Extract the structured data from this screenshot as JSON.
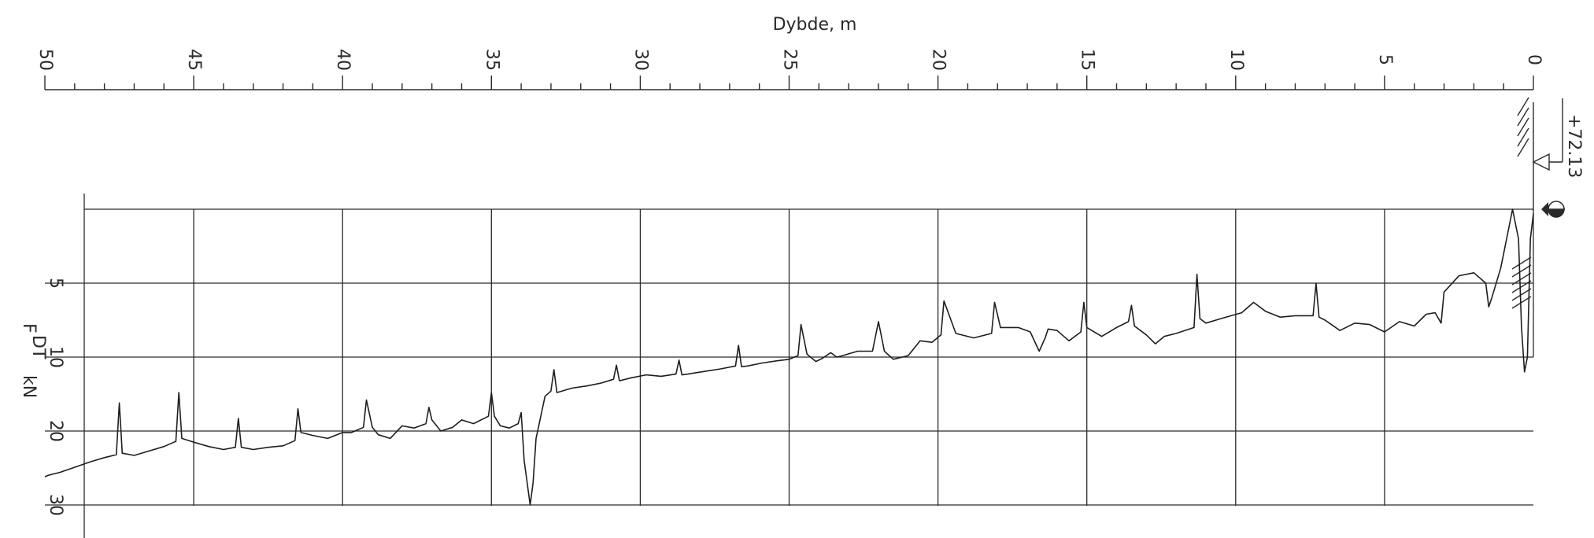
{
  "chart_data": {
    "type": "line",
    "title": "",
    "xlabel": "Dybde, m",
    "ylabel_main": "F",
    "ylabel_sub": "DT",
    "ylabel_unit": "kN",
    "xlim": [
      0,
      50
    ],
    "x_reversed": true,
    "x_ticks": [
      "0",
      "5",
      "10",
      "15",
      "20",
      "25",
      "30",
      "35",
      "40",
      "45",
      "50"
    ],
    "y_ticks": [
      "5",
      "10",
      "20",
      "30"
    ],
    "y_scale": "segmented (0-10 step 5, 10-30 step 10)",
    "grid": true,
    "elevation_label": "+72.13",
    "series": [
      {
        "points": [
          [
            0.0,
            0.3
          ],
          [
            0.1,
            2.0
          ],
          [
            0.2,
            10.0
          ],
          [
            0.3,
            12.0
          ],
          [
            0.4,
            8.0
          ],
          [
            0.5,
            2.0
          ],
          [
            0.7,
            0.0
          ],
          [
            0.9,
            2.0
          ],
          [
            1.1,
            4.0
          ],
          [
            1.4,
            6.0
          ],
          [
            1.5,
            6.6
          ],
          [
            1.6,
            5.0
          ],
          [
            2.0,
            4.3
          ],
          [
            2.5,
            4.5
          ],
          [
            3.0,
            5.6
          ],
          [
            3.1,
            7.7
          ],
          [
            3.3,
            7.0
          ],
          [
            3.6,
            7.1
          ],
          [
            4.0,
            7.9
          ],
          [
            4.5,
            7.6
          ],
          [
            5.0,
            8.3
          ],
          [
            5.5,
            7.8
          ],
          [
            6.0,
            7.7
          ],
          [
            6.5,
            8.2
          ],
          [
            7.0,
            7.5
          ],
          [
            7.2,
            7.3
          ],
          [
            7.3,
            5.0
          ],
          [
            7.4,
            7.2
          ],
          [
            8.0,
            7.2
          ],
          [
            8.5,
            7.3
          ],
          [
            9.0,
            6.9
          ],
          [
            9.4,
            6.3
          ],
          [
            9.8,
            7.0
          ],
          [
            10.5,
            7.4
          ],
          [
            11.0,
            7.7
          ],
          [
            11.2,
            7.4
          ],
          [
            11.3,
            4.4
          ],
          [
            11.4,
            8.0
          ],
          [
            12.0,
            8.4
          ],
          [
            12.4,
            8.6
          ],
          [
            12.7,
            9.1
          ],
          [
            13.0,
            8.5
          ],
          [
            13.4,
            7.9
          ],
          [
            13.5,
            6.5
          ],
          [
            13.6,
            7.6
          ],
          [
            14.0,
            8.0
          ],
          [
            14.5,
            8.6
          ],
          [
            15.0,
            8.0
          ],
          [
            15.1,
            6.3
          ],
          [
            15.2,
            8.3
          ],
          [
            15.6,
            8.9
          ],
          [
            16.0,
            8.2
          ],
          [
            16.3,
            8.1
          ],
          [
            16.4,
            8.7
          ],
          [
            16.6,
            9.6
          ],
          [
            16.9,
            8.3
          ],
          [
            17.3,
            8.0
          ],
          [
            17.9,
            8.0
          ],
          [
            18.1,
            6.3
          ],
          [
            18.2,
            8.4
          ],
          [
            18.8,
            8.7
          ],
          [
            19.4,
            8.4
          ],
          [
            19.8,
            6.2
          ],
          [
            19.9,
            8.5
          ],
          [
            20.2,
            9.0
          ],
          [
            20.6,
            8.9
          ],
          [
            21.0,
            9.9
          ],
          [
            21.5,
            10.3
          ],
          [
            21.8,
            9.6
          ],
          [
            22.0,
            7.6
          ],
          [
            22.2,
            9.6
          ],
          [
            22.7,
            9.6
          ],
          [
            23.2,
            9.9
          ],
          [
            23.4,
            10.0
          ],
          [
            23.6,
            9.7
          ],
          [
            23.9,
            10.2
          ],
          [
            24.1,
            10.6
          ],
          [
            24.4,
            9.8
          ],
          [
            24.6,
            7.8
          ],
          [
            24.7,
            9.9
          ],
          [
            25.0,
            10.3
          ],
          [
            25.4,
            10.5
          ],
          [
            25.9,
            10.8
          ],
          [
            26.4,
            11.2
          ],
          [
            26.6,
            11.3
          ],
          [
            26.7,
            9.2
          ],
          [
            26.8,
            11.2
          ],
          [
            27.3,
            11.6
          ],
          [
            27.8,
            11.9
          ],
          [
            28.4,
            12.3
          ],
          [
            28.6,
            12.4
          ],
          [
            28.7,
            10.4
          ],
          [
            28.8,
            12.3
          ],
          [
            29.3,
            12.6
          ],
          [
            29.8,
            12.4
          ],
          [
            30.3,
            12.8
          ],
          [
            30.7,
            13.2
          ],
          [
            30.8,
            11.1
          ],
          [
            30.9,
            13.0
          ],
          [
            31.3,
            13.5
          ],
          [
            31.8,
            13.9
          ],
          [
            32.3,
            14.2
          ],
          [
            32.8,
            14.8
          ],
          [
            32.9,
            11.7
          ],
          [
            33.0,
            14.6
          ],
          [
            33.2,
            15.3
          ],
          [
            33.5,
            21.0
          ],
          [
            33.6,
            27.0
          ],
          [
            33.7,
            30.0
          ],
          [
            33.8,
            27.0
          ],
          [
            33.9,
            24.0
          ],
          [
            34.0,
            17.5
          ],
          [
            34.1,
            19.0
          ],
          [
            34.4,
            19.6
          ],
          [
            34.7,
            19.3
          ],
          [
            34.9,
            18.0
          ],
          [
            35.0,
            14.8
          ],
          [
            35.1,
            18.0
          ],
          [
            35.6,
            19.0
          ],
          [
            36.0,
            18.5
          ],
          [
            36.3,
            19.5
          ],
          [
            36.7,
            20.0
          ],
          [
            37.0,
            18.5
          ],
          [
            37.1,
            16.8
          ],
          [
            37.2,
            19.0
          ],
          [
            37.6,
            19.6
          ],
          [
            38.0,
            19.3
          ],
          [
            38.4,
            21.0
          ],
          [
            38.8,
            20.5
          ],
          [
            39.0,
            19.5
          ],
          [
            39.2,
            15.8
          ],
          [
            39.3,
            19.5
          ],
          [
            39.7,
            20.2
          ],
          [
            40.0,
            20.2
          ],
          [
            40.5,
            21.0
          ],
          [
            41.0,
            20.6
          ],
          [
            41.4,
            20.2
          ],
          [
            41.5,
            17.0
          ],
          [
            41.6,
            21.3
          ],
          [
            42.0,
            22.0
          ],
          [
            42.5,
            22.2
          ],
          [
            43.0,
            22.5
          ],
          [
            43.4,
            22.2
          ],
          [
            43.5,
            18.3
          ],
          [
            43.6,
            22.2
          ],
          [
            44.0,
            22.5
          ],
          [
            44.5,
            22.1
          ],
          [
            45.0,
            21.5
          ],
          [
            45.4,
            21.0
          ],
          [
            45.5,
            14.8
          ],
          [
            45.6,
            21.4
          ],
          [
            46.0,
            22.1
          ],
          [
            46.5,
            22.7
          ],
          [
            47.0,
            23.3
          ],
          [
            47.4,
            23.0
          ],
          [
            47.5,
            16.2
          ],
          [
            47.6,
            23.2
          ],
          [
            48.0,
            23.6
          ],
          [
            48.5,
            24.2
          ],
          [
            49.0,
            24.9
          ],
          [
            49.5,
            25.6
          ],
          [
            49.9,
            26.0
          ],
          [
            50.0,
            26.2
          ]
        ]
      }
    ]
  }
}
